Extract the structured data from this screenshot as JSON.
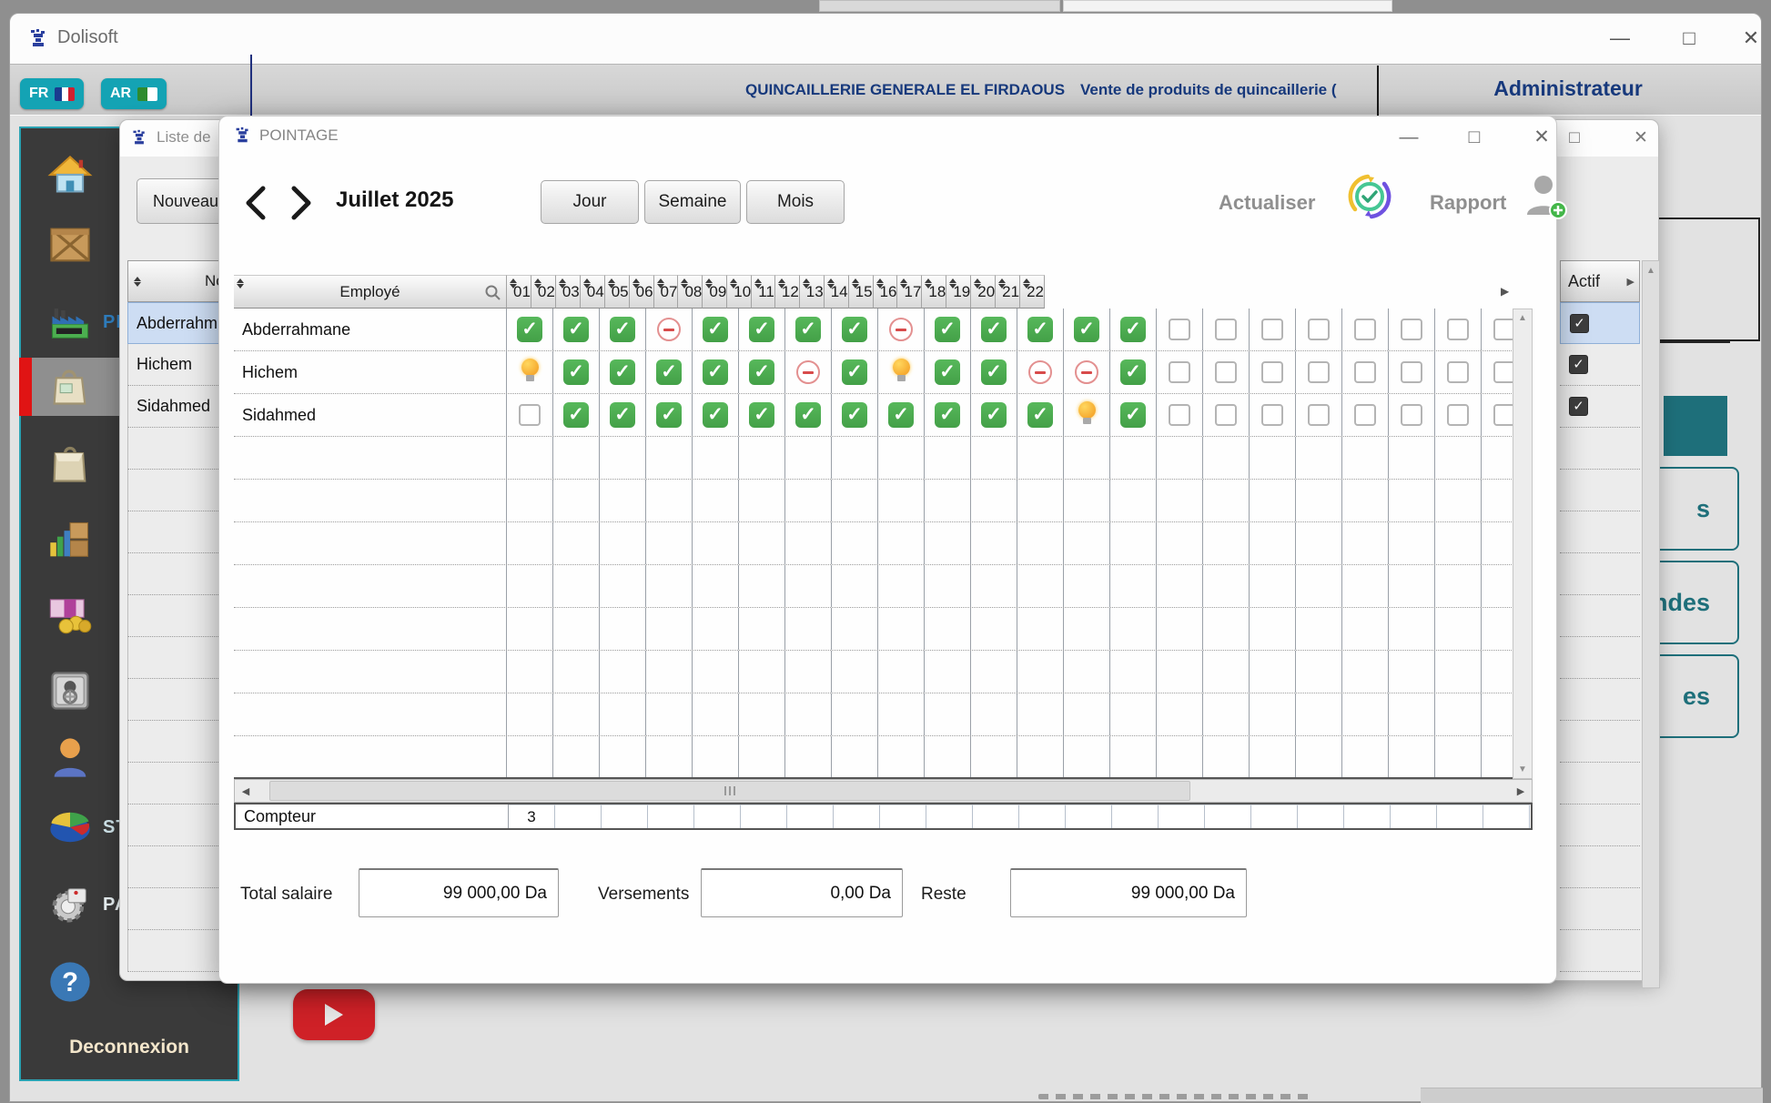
{
  "window": {
    "title": "Dolisoft"
  },
  "header": {
    "fr": "FR",
    "ar": "AR",
    "company": "QUINCAILLERIE GENERALE EL FIRDAOUS",
    "tagline": "Vente de produits de quincaillerie (",
    "user": "Administrateur"
  },
  "sidebar": {
    "items": [
      {
        "icon": "home-icon",
        "label": ""
      },
      {
        "icon": "crate-icon",
        "label": ""
      },
      {
        "icon": "factory-icon",
        "label": "PI"
      },
      {
        "icon": "purchases-bag-icon",
        "label": "",
        "selected": true
      },
      {
        "icon": "package-icon",
        "label": ""
      },
      {
        "icon": "stock-chart-icon",
        "label": ""
      },
      {
        "icon": "money-icon",
        "label": ""
      },
      {
        "icon": "safe-icon",
        "label": ""
      },
      {
        "icon": "user-icon",
        "label": ""
      },
      {
        "icon": "pie-chart-icon",
        "label": "ST"
      },
      {
        "icon": "settings-icon",
        "label": "PA"
      },
      {
        "icon": "help-icon",
        "label": ""
      }
    ],
    "logout": "Deconnexion"
  },
  "liste_window": {
    "title": "Liste de",
    "nouveau": "Nouveau",
    "name_header": "No",
    "rows": [
      "Abderrahm",
      "Hichem",
      "Sidahmed"
    ],
    "filler_rows": 13,
    "actif_header": "Actif"
  },
  "main_bg": {
    "right_buttons": [
      "s",
      "ndes",
      "es"
    ]
  },
  "dialog": {
    "title": "POINTAGE",
    "month": "Juillet 2025",
    "views": [
      "Jour",
      "Semaine",
      "Mois"
    ],
    "actualiser": "Actualiser",
    "rapport": "Rapport",
    "table": {
      "employee_header": "Employé",
      "days": [
        "01",
        "02",
        "03",
        "04",
        "05",
        "06",
        "07",
        "08",
        "09",
        "10",
        "11",
        "12",
        "13",
        "14",
        "15",
        "16",
        "17",
        "18",
        "19",
        "20",
        "21",
        "22"
      ],
      "rows": [
        {
          "name": "Abderrahmane",
          "marks": [
            "check",
            "check",
            "check",
            "minus",
            "check",
            "check",
            "check",
            "check",
            "minus",
            "check",
            "check",
            "check",
            "check",
            "check",
            "empty",
            "empty",
            "empty",
            "empty",
            "empty",
            "empty",
            "empty",
            "empty"
          ]
        },
        {
          "name": "Hichem",
          "marks": [
            "bulb",
            "check",
            "check",
            "check",
            "check",
            "check",
            "minus",
            "check",
            "bulb",
            "check",
            "check",
            "minus",
            "minus",
            "check",
            "empty",
            "empty",
            "empty",
            "empty",
            "empty",
            "empty",
            "empty",
            "empty"
          ]
        },
        {
          "name": "Sidahmed",
          "marks": [
            "empty",
            "check",
            "check",
            "check",
            "check",
            "check",
            "check",
            "check",
            "check",
            "check",
            "check",
            "check",
            "bulb",
            "check",
            "empty",
            "empty",
            "empty",
            "empty",
            "empty",
            "empty",
            "empty",
            "empty"
          ]
        }
      ],
      "filler_rows": 8,
      "compteur_label": "Compteur",
      "compteur_value": "3"
    },
    "totals": {
      "total_label": "Total salaire",
      "total_value": "99 000,00 Da",
      "versements_label": "Versements",
      "versements_value": "0,00 Da",
      "reste_label": "Reste",
      "reste_value": "99 000,00 Da"
    }
  },
  "colors": {
    "teal_button": "#14a3b4",
    "teal_border": "#1e6f7a",
    "accent_navy": "#17397c",
    "check_green": "#43a047",
    "minus_red": "#d84b4b",
    "bulb_yellow": "#f2981d",
    "selection_blue": "#cdddf3"
  }
}
